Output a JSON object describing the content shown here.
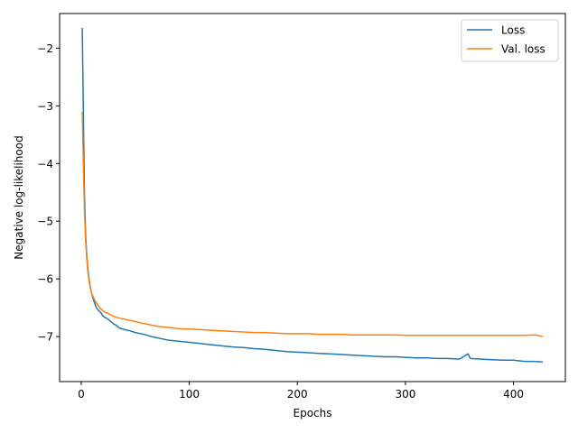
{
  "chart_data": {
    "type": "line",
    "title": "",
    "xlabel": "Epochs",
    "ylabel": "Negative log-likelihood",
    "xlim": [
      -20,
      448
    ],
    "ylim": [
      -7.78,
      -1.4
    ],
    "xticks": [
      0,
      100,
      200,
      300,
      400
    ],
    "yticks": [
      -2,
      -3,
      -4,
      -5,
      -6,
      -7
    ],
    "grid": false,
    "legend_position": "top-right",
    "series": [
      {
        "name": "Loss",
        "color": "#1f77b4",
        "points": [
          [
            1,
            -1.65
          ],
          [
            2,
            -3.1
          ],
          [
            3,
            -4.5
          ],
          [
            4,
            -5.2
          ],
          [
            5,
            -5.55
          ],
          [
            6,
            -5.8
          ],
          [
            7,
            -5.97
          ],
          [
            8,
            -6.1
          ],
          [
            9,
            -6.2
          ],
          [
            10,
            -6.28
          ],
          [
            12,
            -6.4
          ],
          [
            14,
            -6.5
          ],
          [
            16,
            -6.55
          ],
          [
            18,
            -6.58
          ],
          [
            20,
            -6.64
          ],
          [
            22,
            -6.67
          ],
          [
            25,
            -6.7
          ],
          [
            28,
            -6.75
          ],
          [
            30,
            -6.78
          ],
          [
            32,
            -6.8
          ],
          [
            35,
            -6.85
          ],
          [
            40,
            -6.88
          ],
          [
            45,
            -6.9
          ],
          [
            50,
            -6.93
          ],
          [
            55,
            -6.95
          ],
          [
            60,
            -6.97
          ],
          [
            65,
            -7.0
          ],
          [
            70,
            -7.02
          ],
          [
            75,
            -7.04
          ],
          [
            80,
            -7.06
          ],
          [
            85,
            -7.07
          ],
          [
            90,
            -7.08
          ],
          [
            95,
            -7.09
          ],
          [
            100,
            -7.1
          ],
          [
            110,
            -7.12
          ],
          [
            120,
            -7.14
          ],
          [
            130,
            -7.16
          ],
          [
            140,
            -7.18
          ],
          [
            150,
            -7.19
          ],
          [
            160,
            -7.21
          ],
          [
            170,
            -7.22
          ],
          [
            180,
            -7.24
          ],
          [
            190,
            -7.26
          ],
          [
            200,
            -7.27
          ],
          [
            210,
            -7.28
          ],
          [
            220,
            -7.29
          ],
          [
            230,
            -7.3
          ],
          [
            240,
            -7.31
          ],
          [
            250,
            -7.32
          ],
          [
            260,
            -7.33
          ],
          [
            270,
            -7.34
          ],
          [
            280,
            -7.35
          ],
          [
            290,
            -7.35
          ],
          [
            300,
            -7.36
          ],
          [
            310,
            -7.37
          ],
          [
            320,
            -7.37
          ],
          [
            330,
            -7.38
          ],
          [
            340,
            -7.38
          ],
          [
            350,
            -7.39
          ],
          [
            358,
            -7.3
          ],
          [
            360,
            -7.38
          ],
          [
            370,
            -7.39
          ],
          [
            380,
            -7.4
          ],
          [
            390,
            -7.41
          ],
          [
            400,
            -7.41
          ],
          [
            410,
            -7.43
          ],
          [
            420,
            -7.43
          ],
          [
            427,
            -7.44
          ]
        ]
      },
      {
        "name": "Val. loss",
        "color": "#ff7f0e",
        "points": [
          [
            1,
            -3.1
          ],
          [
            2,
            -4.0
          ],
          [
            3,
            -4.8
          ],
          [
            4,
            -5.3
          ],
          [
            5,
            -5.6
          ],
          [
            6,
            -5.85
          ],
          [
            7,
            -6.0
          ],
          [
            8,
            -6.12
          ],
          [
            9,
            -6.2
          ],
          [
            10,
            -6.27
          ],
          [
            12,
            -6.35
          ],
          [
            14,
            -6.42
          ],
          [
            16,
            -6.47
          ],
          [
            18,
            -6.52
          ],
          [
            20,
            -6.55
          ],
          [
            22,
            -6.58
          ],
          [
            25,
            -6.6
          ],
          [
            28,
            -6.63
          ],
          [
            30,
            -6.65
          ],
          [
            35,
            -6.68
          ],
          [
            40,
            -6.7
          ],
          [
            45,
            -6.72
          ],
          [
            50,
            -6.74
          ],
          [
            55,
            -6.76
          ],
          [
            60,
            -6.78
          ],
          [
            65,
            -6.8
          ],
          [
            70,
            -6.82
          ],
          [
            75,
            -6.83
          ],
          [
            80,
            -6.84
          ],
          [
            85,
            -6.85
          ],
          [
            90,
            -6.86
          ],
          [
            95,
            -6.87
          ],
          [
            100,
            -6.87
          ],
          [
            110,
            -6.88
          ],
          [
            120,
            -6.89
          ],
          [
            130,
            -6.9
          ],
          [
            140,
            -6.91
          ],
          [
            150,
            -6.92
          ],
          [
            160,
            -6.93
          ],
          [
            170,
            -6.93
          ],
          [
            180,
            -6.94
          ],
          [
            190,
            -6.95
          ],
          [
            200,
            -6.95
          ],
          [
            210,
            -6.95
          ],
          [
            220,
            -6.96
          ],
          [
            230,
            -6.96
          ],
          [
            240,
            -6.96
          ],
          [
            250,
            -6.97
          ],
          [
            260,
            -6.97
          ],
          [
            270,
            -6.97
          ],
          [
            280,
            -6.97
          ],
          [
            290,
            -6.97
          ],
          [
            300,
            -6.98
          ],
          [
            310,
            -6.98
          ],
          [
            320,
            -6.98
          ],
          [
            330,
            -6.98
          ],
          [
            340,
            -6.98
          ],
          [
            350,
            -6.98
          ],
          [
            360,
            -6.98
          ],
          [
            370,
            -6.98
          ],
          [
            380,
            -6.98
          ],
          [
            390,
            -6.98
          ],
          [
            400,
            -6.98
          ],
          [
            410,
            -6.98
          ],
          [
            420,
            -6.97
          ],
          [
            427,
            -7.0
          ]
        ]
      }
    ]
  }
}
